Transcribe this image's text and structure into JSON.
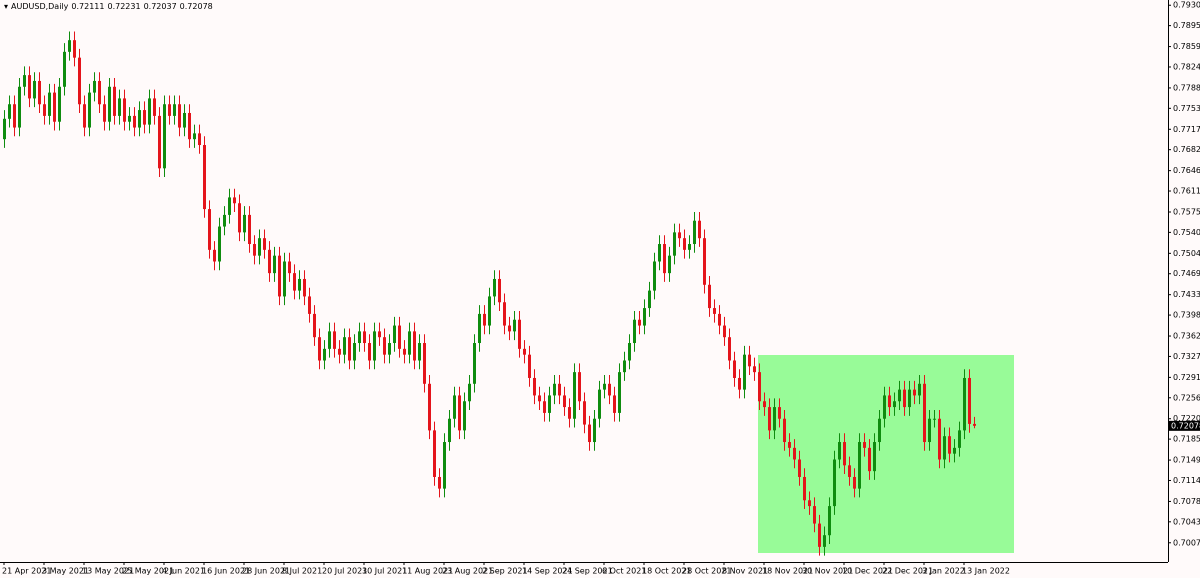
{
  "chart_data": {
    "type": "candlestick",
    "symbol": "AUDUSD,Daily",
    "up_color": "#0f8c0f",
    "down_color": "#e4141b",
    "background": "#fffafa",
    "ylim": [
      0.6974,
      0.7939
    ],
    "yticks": [
      {
        "value": 0.793,
        "label": "0.79300"
      },
      {
        "value": 0.7895,
        "label": "0.78950"
      },
      {
        "value": 0.7859,
        "label": "0.78590"
      },
      {
        "value": 0.7824,
        "label": "0.78240"
      },
      {
        "value": 0.7788,
        "label": "0.77880"
      },
      {
        "value": 0.7753,
        "label": "0.77530"
      },
      {
        "value": 0.7717,
        "label": "0.77170"
      },
      {
        "value": 0.7682,
        "label": "0.76820"
      },
      {
        "value": 0.7646,
        "label": "0.76460"
      },
      {
        "value": 0.7611,
        "label": "0.76110"
      },
      {
        "value": 0.7575,
        "label": "0.75750"
      },
      {
        "value": 0.754,
        "label": "0.75400"
      },
      {
        "value": 0.7504,
        "label": "0.75040"
      },
      {
        "value": 0.7469,
        "label": "0.74690"
      },
      {
        "value": 0.7433,
        "label": "0.74330"
      },
      {
        "value": 0.7398,
        "label": "0.73980"
      },
      {
        "value": 0.7362,
        "label": "0.73620"
      },
      {
        "value": 0.7327,
        "label": "0.73270"
      },
      {
        "value": 0.7291,
        "label": "0.72910"
      },
      {
        "value": 0.7256,
        "label": "0.72560"
      },
      {
        "value": 0.722,
        "label": "0.72200"
      },
      {
        "value": 0.7185,
        "label": "0.71850"
      },
      {
        "value": 0.7149,
        "label": "0.71490"
      },
      {
        "value": 0.7114,
        "label": "0.71140"
      },
      {
        "value": 0.7078,
        "label": "0.70780"
      },
      {
        "value": 0.7043,
        "label": "0.70430"
      },
      {
        "value": 0.7007,
        "label": "0.70070"
      }
    ],
    "categories": [
      "21 Apr 2021",
      null,
      null,
      null,
      null,
      null,
      null,
      null,
      "3 May 2021",
      null,
      null,
      null,
      null,
      null,
      null,
      null,
      "13 May 2021",
      null,
      null,
      null,
      null,
      null,
      null,
      null,
      "25 May 2021",
      null,
      null,
      null,
      null,
      null,
      null,
      null,
      "4 Jun 2021",
      null,
      null,
      null,
      null,
      null,
      null,
      null,
      "16 Jun 2021",
      null,
      null,
      null,
      null,
      null,
      null,
      null,
      "28 Jun 2021",
      null,
      null,
      null,
      null,
      null,
      null,
      null,
      "8 Jul 2021",
      null,
      null,
      null,
      null,
      null,
      null,
      null,
      "20 Jul 2021",
      null,
      null,
      null,
      null,
      null,
      null,
      null,
      "30 Jul 2021",
      null,
      null,
      null,
      null,
      null,
      null,
      null,
      "11 Aug 2021",
      null,
      null,
      null,
      null,
      null,
      null,
      null,
      "23 Aug 2021",
      null,
      null,
      null,
      null,
      null,
      null,
      null,
      "2 Sep 2021",
      null,
      null,
      null,
      null,
      null,
      null,
      null,
      "14 Sep 2021",
      null,
      null,
      null,
      null,
      null,
      null,
      null,
      "24 Sep 2021",
      null,
      null,
      null,
      null,
      null,
      null,
      null,
      "6 Oct 2021",
      null,
      null,
      null,
      null,
      null,
      null,
      null,
      "18 Oct 2021",
      null,
      null,
      null,
      null,
      null,
      null,
      null,
      "28 Oct 2021",
      null,
      null,
      null,
      null,
      null,
      null,
      null,
      "8 Nov 2021",
      null,
      null,
      null,
      null,
      null,
      null,
      null,
      "18 Nov 2021",
      null,
      null,
      null,
      null,
      null,
      null,
      null,
      "30 Nov 2021",
      null,
      null,
      null,
      null,
      null,
      null,
      null,
      "10 Dec 2021",
      null,
      null,
      null,
      null,
      null,
      null,
      null,
      "22 Dec 2021",
      null,
      null,
      null,
      null,
      null,
      null,
      null,
      "3 Jan 2022",
      null,
      null,
      null,
      null,
      null,
      null,
      null,
      "13 Jan 2022",
      null,
      null
    ],
    "open": [
      0.77,
      0.7735,
      0.776,
      0.772,
      0.779,
      0.781,
      0.777,
      0.78,
      0.776,
      0.774,
      0.778,
      0.773,
      0.779,
      0.785,
      0.787,
      0.784,
      0.776,
      0.772,
      0.778,
      0.78,
      0.776,
      0.773,
      0.779,
      0.774,
      0.777,
      0.773,
      0.774,
      0.772,
      0.775,
      0.7725,
      0.777,
      0.774,
      0.765,
      0.776,
      0.774,
      0.776,
      0.772,
      0.7745,
      0.77,
      0.771,
      0.769,
      0.758,
      0.751,
      0.749,
      0.755,
      0.757,
      0.76,
      0.759,
      0.754,
      0.757,
      0.752,
      0.75,
      0.753,
      0.751,
      0.747,
      0.75,
      0.743,
      0.749,
      0.747,
      0.744,
      0.746,
      0.743,
      0.74,
      0.736,
      0.732,
      0.734,
      0.737,
      0.734,
      0.733,
      0.736,
      0.732,
      0.735,
      0.737,
      0.735,
      0.732,
      0.737,
      0.736,
      0.733,
      0.735,
      0.738,
      0.734,
      0.733,
      0.737,
      0.732,
      0.735,
      0.728,
      0.72,
      0.712,
      0.71,
      0.718,
      0.722,
      0.726,
      0.72,
      0.725,
      0.728,
      0.735,
      0.74,
      0.738,
      0.743,
      0.746,
      0.742,
      0.738,
      0.737,
      0.739,
      0.734,
      0.733,
      0.729,
      0.726,
      0.725,
      0.723,
      0.726,
      0.728,
      0.726,
      0.724,
      0.722,
      0.73,
      0.725,
      0.721,
      0.718,
      0.722,
      0.727,
      0.728,
      0.726,
      0.723,
      0.73,
      0.732,
      0.735,
      0.739,
      0.738,
      0.741,
      0.744,
      0.749,
      0.752,
      0.747,
      0.75,
      0.754,
      0.753,
      0.751,
      0.752,
      0.756,
      0.753,
      0.745,
      0.741,
      0.74,
      0.738,
      0.736,
      0.732,
      0.729,
      0.727,
      0.733,
      0.731,
      0.73,
      0.725,
      0.724,
      0.72,
      0.724,
      0.722,
      0.718,
      0.717,
      0.715,
      0.712,
      0.708,
      0.707,
      0.704,
      0.7,
      0.702,
      0.707,
      0.715,
      0.718,
      0.714,
      0.712,
      0.71,
      0.718,
      0.717,
      0.713,
      0.718,
      0.722,
      0.726,
      0.724,
      0.725,
      0.727,
      0.724,
      0.727,
      0.726,
      0.728,
      0.718,
      0.722,
      0.722,
      0.715,
      0.719,
      0.716,
      0.717,
      0.72,
      0.729,
      0.72111
    ],
    "high": [
      0.775,
      0.7775,
      0.7775,
      0.7805,
      0.7825,
      0.7825,
      0.7815,
      0.7815,
      0.7775,
      0.7795,
      0.7795,
      0.7805,
      0.7865,
      0.7885,
      0.7885,
      0.7855,
      0.7775,
      0.7795,
      0.7815,
      0.7815,
      0.7775,
      0.7805,
      0.7805,
      0.7785,
      0.7785,
      0.7755,
      0.7755,
      0.7765,
      0.7765,
      0.7785,
      0.7785,
      0.7755,
      0.7775,
      0.7775,
      0.7775,
      0.7775,
      0.776,
      0.776,
      0.7725,
      0.7725,
      0.7705,
      0.7595,
      0.7525,
      0.7565,
      0.7585,
      0.7615,
      0.7615,
      0.7605,
      0.7585,
      0.7585,
      0.7535,
      0.7545,
      0.7545,
      0.7525,
      0.7515,
      0.7515,
      0.7505,
      0.7505,
      0.7485,
      0.7475,
      0.7475,
      0.7445,
      0.7415,
      0.7375,
      0.7355,
      0.7385,
      0.7385,
      0.7355,
      0.7375,
      0.7375,
      0.7365,
      0.7385,
      0.7385,
      0.7365,
      0.7385,
      0.7385,
      0.7375,
      0.7365,
      0.7395,
      0.7395,
      0.7355,
      0.7385,
      0.7385,
      0.7365,
      0.7365,
      0.7295,
      0.7215,
      0.7135,
      0.7195,
      0.7235,
      0.7275,
      0.7275,
      0.7265,
      0.7295,
      0.7365,
      0.7415,
      0.7415,
      0.7445,
      0.7475,
      0.7475,
      0.7435,
      0.7395,
      0.7405,
      0.7405,
      0.7355,
      0.7345,
      0.7305,
      0.7275,
      0.7265,
      0.7275,
      0.7295,
      0.7295,
      0.7275,
      0.7255,
      0.7315,
      0.7315,
      0.7265,
      0.7225,
      0.7235,
      0.7285,
      0.7295,
      0.7295,
      0.7275,
      0.7315,
      0.7335,
      0.7365,
      0.7405,
      0.7405,
      0.7425,
      0.7455,
      0.7505,
      0.7535,
      0.7535,
      0.7515,
      0.7555,
      0.7555,
      0.7545,
      0.7535,
      0.7575,
      0.7575,
      0.7545,
      0.7465,
      0.7425,
      0.7415,
      0.7395,
      0.7375,
      0.7335,
      0.7305,
      0.7345,
      0.7345,
      0.7325,
      0.7315,
      0.7265,
      0.7255,
      0.7255,
      0.7255,
      0.7235,
      0.7195,
      0.7185,
      0.7165,
      0.7135,
      0.7095,
      0.7085,
      0.7055,
      0.7035,
      0.7085,
      0.7165,
      0.7195,
      0.7195,
      0.7155,
      0.7135,
      0.7195,
      0.7195,
      0.7185,
      0.7195,
      0.7235,
      0.7275,
      0.7275,
      0.7265,
      0.7285,
      0.7285,
      0.7285,
      0.7285,
      0.7295,
      0.7295,
      0.7235,
      0.7235,
      0.7235,
      0.7205,
      0.7205,
      0.7185,
      0.7215,
      0.7305,
      0.7305,
      0.72231
    ],
    "low": [
      0.7685,
      0.772,
      0.7705,
      0.7705,
      0.7775,
      0.7755,
      0.7755,
      0.7745,
      0.7725,
      0.7725,
      0.7715,
      0.7715,
      0.7775,
      0.7835,
      0.7825,
      0.7745,
      0.7705,
      0.7705,
      0.7765,
      0.7745,
      0.7715,
      0.7715,
      0.7725,
      0.7725,
      0.7715,
      0.7715,
      0.7705,
      0.7705,
      0.771,
      0.771,
      0.7725,
      0.7635,
      0.7635,
      0.7725,
      0.7725,
      0.7705,
      0.7705,
      0.7685,
      0.7685,
      0.7675,
      0.7565,
      0.7495,
      0.7475,
      0.7475,
      0.7535,
      0.7555,
      0.7575,
      0.7525,
      0.7525,
      0.7505,
      0.7485,
      0.7485,
      0.7495,
      0.7455,
      0.7455,
      0.7415,
      0.7415,
      0.7455,
      0.7425,
      0.7425,
      0.7415,
      0.7385,
      0.7345,
      0.7305,
      0.7305,
      0.7325,
      0.7325,
      0.7315,
      0.7315,
      0.7305,
      0.7305,
      0.7335,
      0.7335,
      0.7305,
      0.7305,
      0.7345,
      0.7315,
      0.7315,
      0.7335,
      0.7325,
      0.7315,
      0.7315,
      0.7305,
      0.7305,
      0.7265,
      0.7185,
      0.7105,
      0.7085,
      0.7085,
      0.7165,
      0.7205,
      0.7185,
      0.7185,
      0.7235,
      0.7265,
      0.7335,
      0.7365,
      0.7365,
      0.7415,
      0.7405,
      0.7365,
      0.7355,
      0.7355,
      0.7325,
      0.7315,
      0.7275,
      0.7245,
      0.7235,
      0.7215,
      0.7215,
      0.7245,
      0.7245,
      0.7225,
      0.7205,
      0.7205,
      0.7235,
      0.7195,
      0.7165,
      0.7165,
      0.7205,
      0.7255,
      0.7245,
      0.7215,
      0.7215,
      0.7285,
      0.7305,
      0.7335,
      0.7365,
      0.7365,
      0.7395,
      0.7425,
      0.7475,
      0.7455,
      0.7455,
      0.7485,
      0.7515,
      0.7495,
      0.7495,
      0.7505,
      0.7515,
      0.7435,
      0.7395,
      0.7385,
      0.7365,
      0.7345,
      0.7305,
      0.7275,
      0.7255,
      0.7255,
      0.7295,
      0.7285,
      0.7235,
      0.7225,
      0.7185,
      0.7185,
      0.7205,
      0.7165,
      0.7155,
      0.7135,
      0.7105,
      0.7065,
      0.7055,
      0.7025,
      0.6985,
      0.6985,
      0.7005,
      0.7055,
      0.7135,
      0.7125,
      0.7105,
      0.7085,
      0.7085,
      0.7155,
      0.7115,
      0.7115,
      0.7165,
      0.7205,
      0.7225,
      0.7225,
      0.7235,
      0.7225,
      0.7225,
      0.7245,
      0.7245,
      0.7165,
      0.7165,
      0.7205,
      0.7135,
      0.7135,
      0.7145,
      0.7145,
      0.7155,
      0.7185,
      0.7196,
      0.72037
    ],
    "close": [
      0.7735,
      0.776,
      0.772,
      0.779,
      0.781,
      0.777,
      0.78,
      0.776,
      0.774,
      0.778,
      0.773,
      0.779,
      0.785,
      0.787,
      0.784,
      0.776,
      0.772,
      0.778,
      0.78,
      0.776,
      0.773,
      0.779,
      0.774,
      0.777,
      0.773,
      0.774,
      0.772,
      0.775,
      0.7725,
      0.777,
      0.774,
      0.765,
      0.776,
      0.774,
      0.776,
      0.772,
      0.7745,
      0.77,
      0.771,
      0.769,
      0.758,
      0.751,
      0.749,
      0.755,
      0.757,
      0.76,
      0.759,
      0.754,
      0.757,
      0.752,
      0.75,
      0.753,
      0.751,
      0.747,
      0.75,
      0.743,
      0.749,
      0.747,
      0.744,
      0.746,
      0.743,
      0.74,
      0.736,
      0.732,
      0.734,
      0.737,
      0.734,
      0.733,
      0.736,
      0.732,
      0.735,
      0.737,
      0.735,
      0.732,
      0.737,
      0.736,
      0.733,
      0.735,
      0.738,
      0.734,
      0.733,
      0.737,
      0.732,
      0.735,
      0.728,
      0.72,
      0.712,
      0.71,
      0.718,
      0.722,
      0.726,
      0.72,
      0.725,
      0.728,
      0.735,
      0.74,
      0.738,
      0.743,
      0.746,
      0.742,
      0.738,
      0.737,
      0.739,
      0.734,
      0.733,
      0.729,
      0.726,
      0.725,
      0.723,
      0.726,
      0.728,
      0.726,
      0.724,
      0.722,
      0.73,
      0.725,
      0.721,
      0.718,
      0.722,
      0.727,
      0.728,
      0.726,
      0.723,
      0.73,
      0.732,
      0.735,
      0.739,
      0.738,
      0.741,
      0.744,
      0.749,
      0.752,
      0.747,
      0.75,
      0.754,
      0.753,
      0.751,
      0.752,
      0.756,
      0.753,
      0.745,
      0.741,
      0.74,
      0.738,
      0.736,
      0.732,
      0.729,
      0.727,
      0.733,
      0.731,
      0.73,
      0.725,
      0.724,
      0.72,
      0.724,
      0.722,
      0.718,
      0.717,
      0.715,
      0.712,
      0.708,
      0.707,
      0.704,
      0.7,
      0.702,
      0.707,
      0.715,
      0.718,
      0.714,
      0.712,
      0.71,
      0.718,
      0.717,
      0.713,
      0.718,
      0.722,
      0.726,
      0.724,
      0.725,
      0.727,
      0.724,
      0.727,
      0.726,
      0.728,
      0.718,
      0.722,
      0.722,
      0.715,
      0.719,
      0.716,
      0.717,
      0.72,
      0.729,
      0.72111,
      0.72078
    ]
  }
}
